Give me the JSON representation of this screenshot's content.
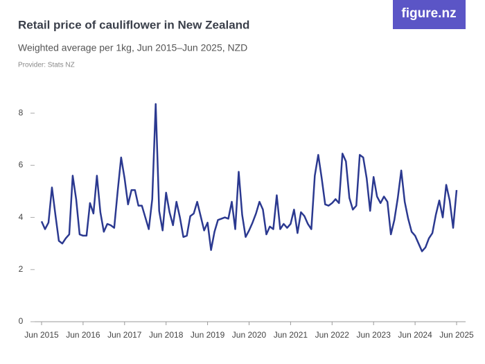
{
  "chart_data": {
    "type": "line",
    "title": "Retail price of cauliflower in New Zealand",
    "subtitle": "Weighted average per 1kg, Jun 2015–Jun 2025, NZD",
    "source": "Provider: Stats NZ",
    "logo": "figure.nz",
    "categories": [
      "Jun 2015",
      null,
      null,
      null,
      null,
      null,
      null,
      null,
      null,
      null,
      null,
      null,
      "Jun 2016",
      null,
      null,
      null,
      null,
      null,
      null,
      null,
      null,
      null,
      null,
      null,
      "Jun 2017",
      null,
      null,
      null,
      null,
      null,
      null,
      null,
      null,
      null,
      null,
      null,
      "Jun 2018",
      null,
      null,
      null,
      null,
      null,
      null,
      null,
      null,
      null,
      null,
      null,
      "Jun 2019",
      null,
      null,
      null,
      null,
      null,
      null,
      null,
      null,
      null,
      null,
      null,
      "Jun 2020",
      null,
      null,
      null,
      null,
      null,
      null,
      null,
      null,
      null,
      null,
      null,
      "Jun 2021",
      null,
      null,
      null,
      null,
      null,
      null,
      null,
      null,
      null,
      null,
      null,
      "Jun 2022",
      null,
      null,
      null,
      null,
      null,
      null,
      null,
      null,
      null,
      null,
      null,
      "Jun 2023",
      null,
      null,
      null,
      null,
      null,
      null,
      null,
      null,
      null,
      null,
      null,
      "Jun 2024",
      null,
      null,
      null,
      null,
      null,
      null,
      null,
      null,
      null,
      null,
      null,
      "Jun 2025"
    ],
    "values": [
      3.85,
      3.55,
      3.8,
      5.15,
      4.1,
      3.1,
      3.0,
      3.2,
      3.35,
      5.6,
      4.7,
      3.35,
      3.3,
      3.3,
      4.55,
      4.15,
      5.6,
      4.2,
      3.45,
      3.75,
      3.7,
      3.6,
      5.0,
      6.3,
      5.5,
      4.5,
      5.05,
      5.05,
      4.45,
      4.45,
      4.0,
      3.55,
      4.7,
      8.35,
      4.25,
      3.5,
      4.95,
      4.2,
      3.7,
      4.6,
      4.0,
      3.25,
      3.3,
      4.05,
      4.15,
      4.6,
      4.05,
      3.5,
      3.8,
      2.75,
      3.45,
      3.9,
      3.95,
      4.0,
      3.95,
      4.6,
      3.55,
      5.75,
      4.1,
      3.25,
      3.5,
      3.8,
      4.15,
      4.6,
      4.3,
      3.35,
      3.65,
      3.55,
      4.85,
      3.55,
      3.75,
      3.6,
      3.75,
      4.3,
      3.4,
      4.2,
      4.05,
      3.75,
      3.55,
      5.6,
      6.4,
      5.5,
      4.5,
      4.45,
      4.55,
      4.7,
      4.55,
      6.45,
      6.15,
      4.75,
      4.3,
      4.45,
      6.4,
      6.3,
      5.5,
      4.25,
      5.55,
      4.8,
      4.55,
      4.8,
      4.6,
      3.35,
      3.9,
      4.75,
      5.8,
      4.6,
      3.95,
      3.45,
      3.3,
      3.0,
      2.7,
      2.85,
      3.2,
      3.4,
      4.1,
      4.65,
      4.0,
      5.25,
      4.65,
      3.6,
      5.05
    ],
    "color": "#2b3990",
    "ylim": [
      0,
      8.6
    ],
    "yticks": [
      0,
      2,
      4,
      6,
      8
    ]
  }
}
